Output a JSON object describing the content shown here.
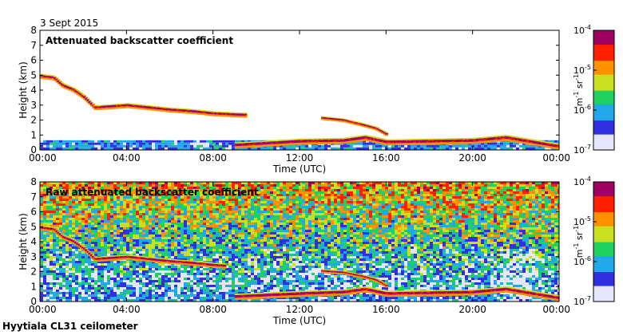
{
  "figure": {
    "date_label": "3 Sept 2015",
    "footer_label": "Hyytiala CL31 ceilometer"
  },
  "colorscale": {
    "colors": [
      "#e6e6ff",
      "#3030e0",
      "#20a8e8",
      "#20d060",
      "#c8e020",
      "#ff9000",
      "#ff2000",
      "#a00060"
    ],
    "unit_parts": [
      "m",
      "-1",
      " sr",
      "-1"
    ]
  },
  "chart_data": [
    {
      "type": "heatmap",
      "title": "Attenuated backscatter coefficient",
      "xlabel": "Time (UTC)",
      "ylabel": "Height (km)",
      "xlim": [
        0,
        24
      ],
      "ylim": [
        0,
        8
      ],
      "xticks": [
        0,
        4,
        8,
        12,
        16,
        20,
        24
      ],
      "xtick_labels": [
        "00:00",
        "04:00",
        "08:00",
        "12:00",
        "16:00",
        "20:00",
        "00:00"
      ],
      "yticks": [
        0,
        1,
        2,
        3,
        4,
        5,
        6,
        7,
        8
      ],
      "ytick_labels": [
        "0",
        "1",
        "2",
        "3",
        "4",
        "5",
        "6",
        "7",
        "8"
      ],
      "colorbar": {
        "scale": "log",
        "range": [
          1e-07,
          0.0001
        ],
        "tick_mantissa": [
          "10",
          "10",
          "10",
          "10"
        ],
        "tick_exponents": [
          "-7",
          "-6",
          "-5",
          "-4"
        ]
      },
      "layers": {
        "near_surface_noise_top_km": 0.65,
        "elevated_layer_time_h": [
          0.0,
          0.6,
          1.0,
          1.5,
          2.0,
          2.5,
          3.0,
          4.0,
          5.0,
          6.0,
          7.0,
          8.0,
          9.5
        ],
        "elevated_layer_height_km": [
          4.9,
          4.8,
          4.3,
          4.0,
          3.5,
          2.8,
          2.85,
          2.95,
          2.8,
          2.65,
          2.55,
          2.4,
          2.3
        ],
        "boundary_layer_time_h": [
          9.0,
          12.0,
          14.0,
          15.0,
          16.0,
          18.0,
          20.0,
          21.5,
          24.0
        ],
        "boundary_layer_height_km": [
          0.3,
          0.55,
          0.6,
          0.8,
          0.5,
          0.55,
          0.6,
          0.8,
          0.2
        ],
        "descending_layer_time_h": [
          13.0,
          14.0,
          15.0,
          15.5,
          16.0
        ],
        "descending_layer_height_km": [
          2.1,
          1.95,
          1.6,
          1.4,
          1.0
        ]
      }
    },
    {
      "type": "heatmap",
      "title": "Raw attenuated backscatter coefficient",
      "xlabel": "Time (UTC)",
      "ylabel": "Height (km)",
      "xlim": [
        0,
        24
      ],
      "ylim": [
        0,
        8
      ],
      "xticks": [
        0,
        4,
        8,
        12,
        16,
        20,
        24
      ],
      "xtick_labels": [
        "00:00",
        "04:00",
        "08:00",
        "12:00",
        "16:00",
        "20:00",
        "00:00"
      ],
      "yticks": [
        0,
        1,
        2,
        3,
        4,
        5,
        6,
        7,
        8
      ],
      "ytick_labels": [
        "0",
        "1",
        "2",
        "3",
        "4",
        "5",
        "6",
        "7",
        "8"
      ],
      "colorbar": {
        "scale": "log",
        "range": [
          1e-07,
          0.0001
        ],
        "tick_mantissa": [
          "10",
          "10",
          "10",
          "10"
        ],
        "tick_exponents": [
          "-7",
          "-6",
          "-5",
          "-4"
        ]
      },
      "layers": {
        "noise_increases_with_height": true,
        "elevated_layer_time_h": [
          0.0,
          0.6,
          1.0,
          1.5,
          2.0,
          2.5,
          3.0,
          4.0,
          5.0,
          6.0,
          7.0,
          8.0,
          8.5
        ],
        "elevated_layer_height_km": [
          4.9,
          4.8,
          4.3,
          4.0,
          3.5,
          2.8,
          2.85,
          2.95,
          2.8,
          2.65,
          2.55,
          2.4,
          2.35
        ],
        "boundary_layer_time_h": [
          9.0,
          12.0,
          14.0,
          15.0,
          16.0,
          18.0,
          20.0,
          21.5,
          24.0
        ],
        "boundary_layer_height_km": [
          0.3,
          0.5,
          0.6,
          0.8,
          0.5,
          0.55,
          0.6,
          0.8,
          0.2
        ],
        "descending_layer_time_h": [
          13.0,
          14.0,
          15.0,
          15.5,
          16.0
        ],
        "descending_layer_height_km": [
          2.0,
          1.9,
          1.6,
          1.4,
          1.0
        ]
      }
    }
  ]
}
